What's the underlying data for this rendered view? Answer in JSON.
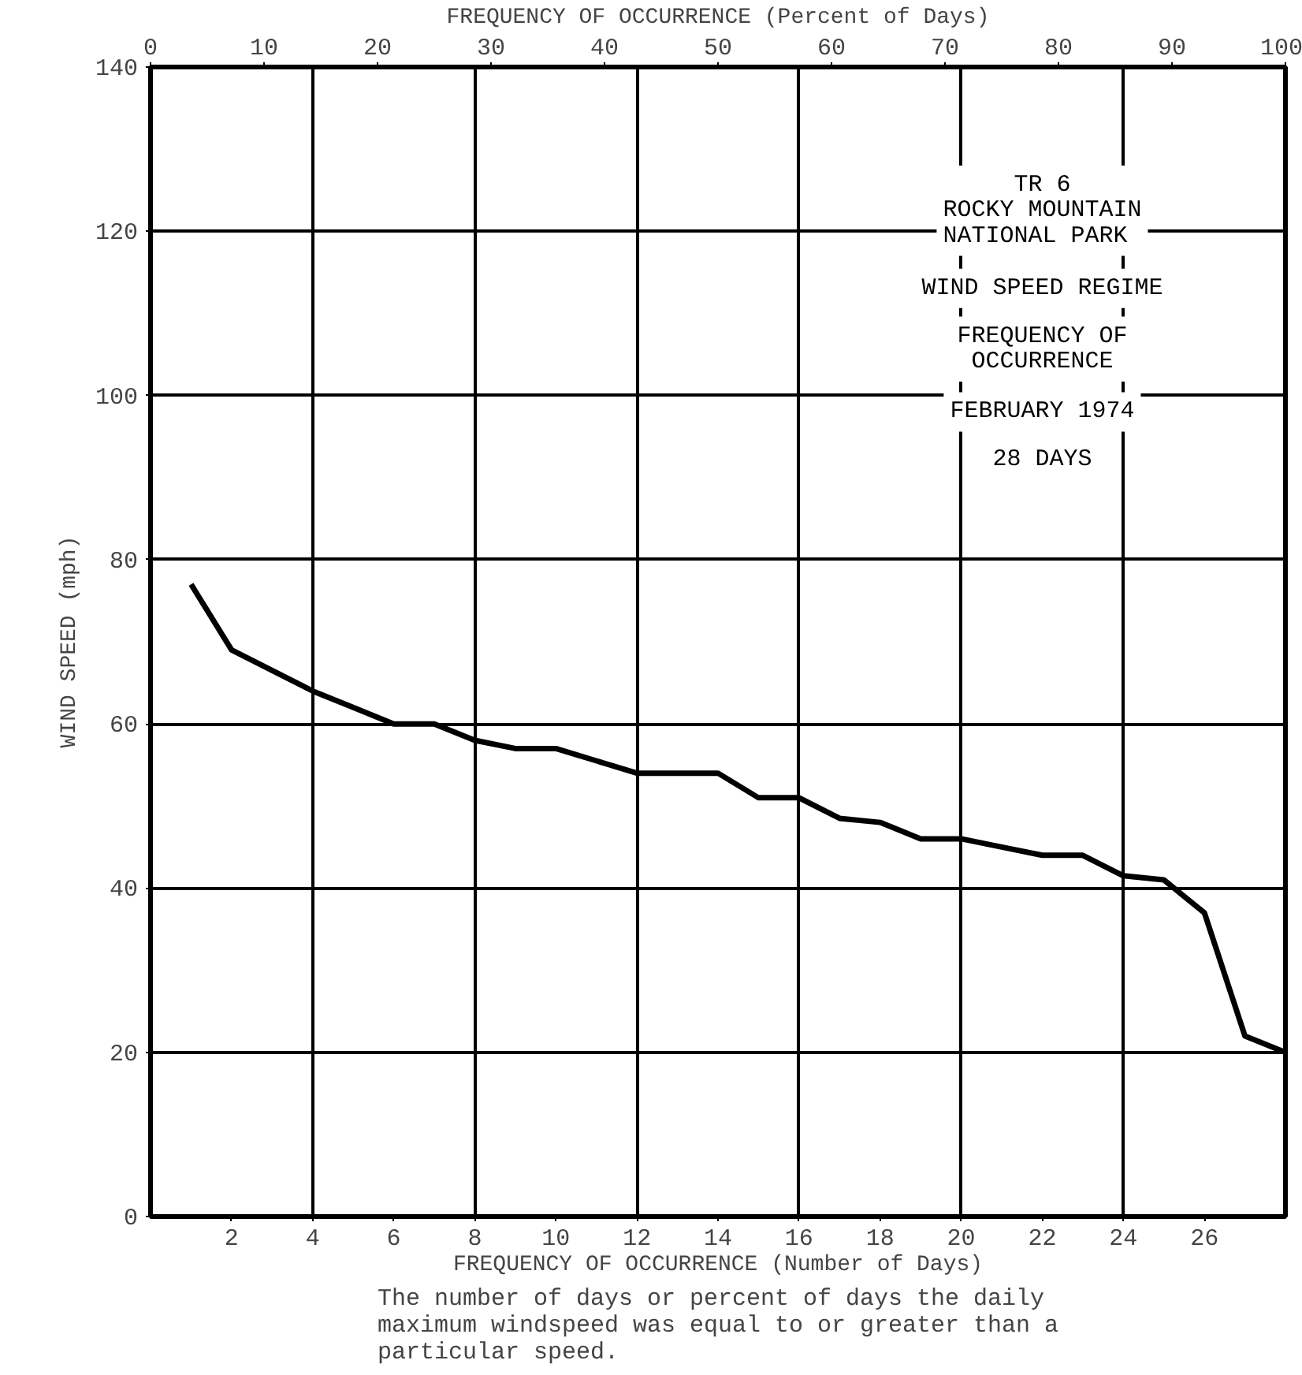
{
  "chart_data": {
    "type": "line",
    "title": "TR 6\nROCKY MOUNTAIN\nNATIONAL  PARK",
    "annotations": [
      "WIND SPEED REGIME",
      "FREQUENCY OF\nOCCURRENCE",
      "FEBRUARY 1974",
      "28 DAYS",
      "The number of days or percent of days the daily\nmaximum windspeed was equal to or greater than a\nparticular speed."
    ],
    "xlabel": "FREQUENCY OF OCCURRENCE (Number of Days)",
    "x2label": "FREQUENCY OF OCCURRENCE (Percent of Days)",
    "ylabel": "WIND SPEED (mph)",
    "x": [
      1,
      2,
      3,
      4,
      5,
      6,
      7,
      8,
      9,
      10,
      11,
      12,
      13,
      14,
      15,
      16,
      17,
      18,
      19,
      20,
      21,
      22,
      23,
      24,
      25,
      26,
      27,
      28
    ],
    "series": [
      {
        "color": "#000000",
        "values": [
          77,
          69,
          66.5,
          64,
          62,
          60,
          60,
          58,
          57,
          57,
          55.5,
          54,
          54,
          54,
          51,
          51,
          48.5,
          48,
          46,
          46,
          45,
          44,
          44,
          41.5,
          41,
          37,
          22,
          20
        ]
      }
    ],
    "xlim": [
      0,
      28
    ],
    "xticks": [
      2,
      4,
      6,
      8,
      10,
      12,
      14,
      16,
      18,
      20,
      22,
      24,
      26
    ],
    "x2lim": [
      0,
      100
    ],
    "x2ticks": [
      0,
      10,
      20,
      30,
      40,
      50,
      60,
      70,
      80,
      90,
      100
    ],
    "ylim": [
      0,
      140
    ],
    "yticks": [
      0,
      20,
      40,
      60,
      80,
      100,
      120,
      140
    ],
    "grid": true,
    "marker": "none",
    "line_style": "solid"
  }
}
